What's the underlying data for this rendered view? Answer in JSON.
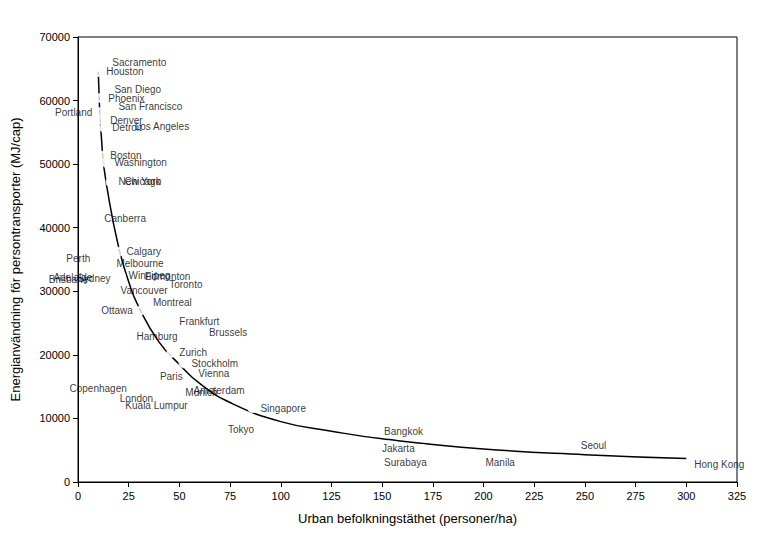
{
  "chart_data": {
    "type": "scatter",
    "xlabel": "Urban befolkningstäthet (personer/ha)",
    "ylabel": "Energianvändning för persontransporter (MJ/cap)",
    "xlim": [
      0,
      325
    ],
    "xticks": [
      0,
      25,
      50,
      75,
      100,
      125,
      150,
      175,
      200,
      225,
      250,
      275,
      300,
      325
    ],
    "ylim": [
      0,
      70000
    ],
    "yticks": [
      0,
      10000,
      20000,
      30000,
      40000,
      50000,
      60000,
      70000
    ],
    "grid": false,
    "series": [
      {
        "type": "scatter",
        "marker": "hollow",
        "color": "#000000",
        "labels": [
          "Sacramento",
          "Houston",
          "San Diego",
          "Phoenix",
          "San Francisco",
          "Portland",
          "Denver",
          "Los Angeles",
          "Detroit",
          "Boston",
          "Washington",
          "Chicago",
          "New York",
          "Canberra",
          "Calgary",
          "Perth",
          "Melbourne",
          "Winnipeg",
          "Adelaide",
          "Edmonton",
          "Brisbane",
          "Toronto",
          "Vancouver",
          "Sydney",
          "Ottawa",
          "Montreal",
          "Frankfurt",
          "Hamburg",
          "Brussels",
          "Zurich",
          "Stockholm",
          "Vienna",
          "Singapore",
          "Copenhagen",
          "Paris",
          "London",
          "Munich",
          "Amsterdam",
          "Kuala Lumpur",
          "Tokyo",
          "Bangkok",
          "Seoul",
          "Jakarta",
          "Surabaya",
          "Manila",
          "Hong Kong"
        ],
        "x": [
          13,
          10,
          14,
          11,
          16,
          11,
          12,
          24,
          13,
          12,
          14,
          19,
          16,
          9,
          20,
          10,
          15,
          21,
          11,
          29,
          9,
          41,
          17,
          20,
          31,
          33,
          46,
          39,
          74,
          46,
          52,
          67,
          86,
          28,
          46,
          41,
          49,
          53,
          58,
          70,
          147,
          244,
          170,
          176,
          197,
          300
        ],
        "values": [
          66000,
          64500,
          61800,
          60400,
          59100,
          58200,
          56900,
          56000,
          55700,
          51300,
          50200,
          47300,
          47200,
          41400,
          36200,
          35200,
          34300,
          32500,
          32100,
          32400,
          31800,
          31100,
          30200,
          32000,
          27000,
          28300,
          25200,
          20800,
          21400,
          20300,
          18700,
          15000,
          11600,
          14700,
          14600,
          13200,
          14100,
          14400,
          12100,
          8200,
          8000,
          5700,
          5200,
          3000,
          3100,
          2700
        ]
      },
      {
        "type": "line",
        "line_style": "solid",
        "color": "#000000",
        "x": [
          10,
          12,
          15,
          20,
          25,
          30,
          40,
          50,
          60,
          75,
          100,
          125,
          150,
          200,
          250,
          300
        ],
        "values": [
          64500,
          52000,
          45000,
          37000,
          31500,
          27500,
          22000,
          18500,
          15500,
          12500,
          9500,
          8000,
          6800,
          5200,
          4300,
          3700
        ]
      }
    ]
  }
}
